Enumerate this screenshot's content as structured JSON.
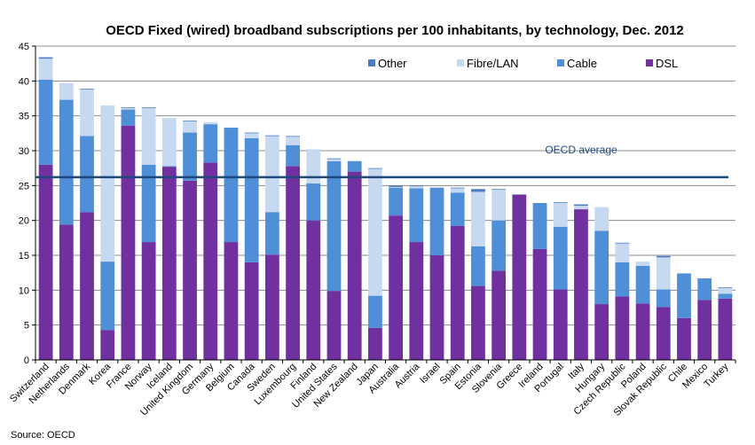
{
  "chart_data": {
    "type": "bar",
    "stacked": true,
    "title": "OECD Fixed (wired) broadband subscriptions per 100 inhabitants, by technology, Dec. 2012",
    "xlabel": "",
    "ylabel": "",
    "ylim": [
      0,
      45
    ],
    "yticks": [
      0,
      5,
      10,
      15,
      20,
      25,
      30,
      35,
      40,
      45
    ],
    "grid": true,
    "legend_position": "top-right",
    "categories": [
      "Switzerland",
      "Netherlands",
      "Denmark",
      "Korea",
      "France",
      "Norway",
      "Iceland",
      "United Kingdom",
      "Germany",
      "Belgium",
      "Canada",
      "Sweden",
      "Luxembourg",
      "Finland",
      "United States",
      "New Zealand",
      "Japan",
      "Australia",
      "Austria",
      "Israel",
      "Spain",
      "Estonia",
      "Slovenia",
      "Greece",
      "Ireland",
      "Portugal",
      "Italy",
      "Hungary",
      "Czech Republic",
      "Poland",
      "Slovak Republic",
      "Chile",
      "Mexico",
      "Turkey"
    ],
    "series": [
      {
        "name": "DSL",
        "color": "#7030A0",
        "values": [
          28.0,
          19.4,
          21.2,
          4.3,
          33.6,
          16.9,
          27.7,
          25.7,
          28.3,
          16.9,
          14.0,
          15.1,
          27.8,
          20.0,
          9.9,
          27.0,
          4.6,
          20.7,
          16.9,
          15.0,
          19.2,
          10.6,
          12.8,
          23.7,
          15.9,
          10.1,
          21.6,
          8.0,
          9.1,
          8.1,
          7.6,
          6.0,
          8.6,
          8.8
        ]
      },
      {
        "name": "Cable",
        "color": "#4F8FD8",
        "values": [
          12.2,
          17.9,
          10.9,
          9.8,
          2.3,
          11.1,
          0.1,
          6.9,
          5.5,
          16.4,
          17.8,
          6.1,
          3.0,
          5.3,
          18.6,
          1.4,
          4.6,
          4.0,
          7.7,
          9.7,
          4.8,
          5.7,
          7.2,
          0.0,
          6.6,
          9.0,
          0.0,
          10.5,
          4.9,
          5.4,
          2.5,
          6.4,
          3.0,
          0.7
        ]
      },
      {
        "name": "Fibre/LAN",
        "color": "#C6D9F1",
        "values": [
          3.0,
          2.4,
          6.7,
          22.4,
          0.2,
          8.1,
          6.9,
          1.6,
          0.3,
          0.0,
          0.7,
          10.9,
          1.2,
          4.9,
          0.3,
          0.0,
          18.2,
          0.1,
          0.3,
          0.0,
          0.6,
          7.8,
          4.4,
          0.1,
          0.0,
          3.4,
          0.5,
          3.4,
          2.7,
          0.6,
          4.6,
          0.0,
          0.0,
          0.8
        ]
      },
      {
        "name": "Other",
        "color": "#4A7BC4",
        "values": [
          0.2,
          0.0,
          0.1,
          0.0,
          0.1,
          0.1,
          0.0,
          0.1,
          0.0,
          0.0,
          0.1,
          0.1,
          0.1,
          0.0,
          0.1,
          0.1,
          0.1,
          0.2,
          0.1,
          0.0,
          0.1,
          0.4,
          0.1,
          0.0,
          0.0,
          0.1,
          0.2,
          0.0,
          0.1,
          0.0,
          0.2,
          0.0,
          0.1,
          0.1
        ]
      }
    ],
    "reference_line": {
      "label": "OECD average",
      "value": 26.2,
      "color": "#1F497D"
    },
    "legend_order": [
      "Other",
      "Fibre/LAN",
      "Cable",
      "DSL"
    ]
  },
  "footer": {
    "source": "Source: OECD"
  }
}
